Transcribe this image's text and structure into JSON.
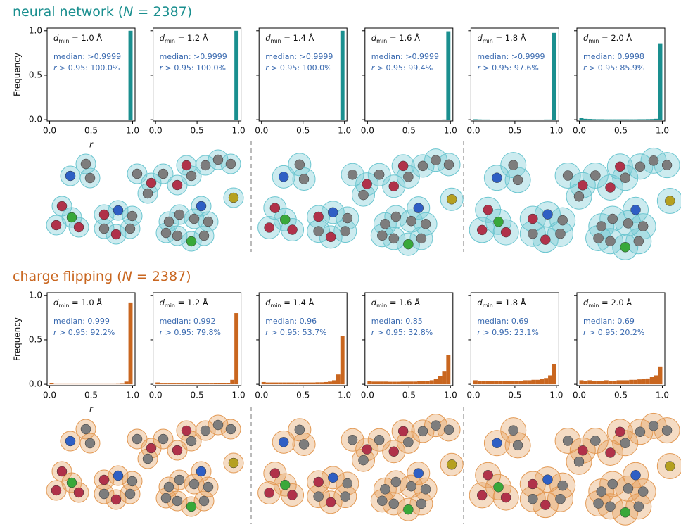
{
  "section_titles": [
    [
      "neural network (",
      "N",
      " = 2387)"
    ],
    [
      "charge flipping (",
      "N",
      " = 2387)"
    ]
  ],
  "chart_data": [
    {
      "type": "histogram",
      "xlabel": "r",
      "ylabel": "Frequency",
      "annotations": [
        [
          "d",
          "min",
          " = 1.0 Å"
        ],
        "median: >0.9999",
        [
          "r",
          " > 0.95: 100.0%"
        ]
      ],
      "color": "#1a8f8f",
      "bins": [
        0,
        0.05,
        0.1,
        0.15,
        0.2,
        0.25,
        0.3,
        0.35,
        0.4,
        0.45,
        0.5,
        0.55,
        0.6,
        0.65,
        0.7,
        0.75,
        0.8,
        0.85,
        0.9,
        0.95,
        1
      ],
      "values": [
        0,
        0,
        0,
        0,
        0,
        0,
        0,
        0,
        0,
        0,
        0,
        0,
        0,
        0,
        0,
        0,
        0,
        0,
        0,
        1.0
      ],
      "xlim": [
        -0.03,
        1.03
      ],
      "ylim": [
        -0.015,
        1.03
      ],
      "xticks": [
        {
          "value": 0,
          "label": "0.0"
        },
        0.5,
        {
          "value": 1,
          "label": "1.0"
        }
      ],
      "yticks": [
        {
          "value": 0,
          "label": "0.0"
        },
        0.5,
        {
          "value": 1,
          "label": "1.0"
        }
      ]
    },
    {
      "type": "histogram",
      "annotations": [
        [
          "d",
          "min",
          " = 1.2 Å"
        ],
        "median: >0.9999",
        [
          "r",
          " > 0.95: 100.0%"
        ]
      ],
      "color": "#1a8f8f",
      "bins": [
        0,
        0.05,
        0.1,
        0.15,
        0.2,
        0.25,
        0.3,
        0.35,
        0.4,
        0.45,
        0.5,
        0.55,
        0.6,
        0.65,
        0.7,
        0.75,
        0.8,
        0.85,
        0.9,
        0.95,
        1
      ],
      "values": [
        0,
        0,
        0,
        0,
        0,
        0,
        0,
        0,
        0,
        0,
        0,
        0,
        0,
        0,
        0,
        0,
        0,
        0,
        0,
        1.0
      ],
      "xlim": [
        -0.03,
        1.03
      ],
      "ylim": [
        -0.015,
        1.03
      ],
      "xticks": [
        {
          "value": 0,
          "label": "0.0"
        },
        0.5,
        {
          "value": 1,
          "label": "1.0"
        }
      ],
      "yticks": [
        0,
        0.5,
        1
      ]
    },
    {
      "type": "histogram",
      "annotations": [
        [
          "d",
          "min",
          " = 1.4 Å"
        ],
        "median: >0.9999",
        [
          "r",
          " > 0.95: 100.0%"
        ]
      ],
      "color": "#1a8f8f",
      "bins": [
        0,
        0.05,
        0.1,
        0.15,
        0.2,
        0.25,
        0.3,
        0.35,
        0.4,
        0.45,
        0.5,
        0.55,
        0.6,
        0.65,
        0.7,
        0.75,
        0.8,
        0.85,
        0.9,
        0.95,
        1
      ],
      "values": [
        0,
        0,
        0,
        0,
        0,
        0,
        0,
        0,
        0,
        0,
        0,
        0,
        0,
        0,
        0,
        0,
        0,
        0,
        0,
        1.0
      ],
      "xlim": [
        -0.03,
        1.03
      ],
      "ylim": [
        -0.015,
        1.03
      ],
      "xticks": [
        {
          "value": 0,
          "label": "0.0"
        },
        0.5,
        {
          "value": 1,
          "label": "1.0"
        }
      ],
      "yticks": [
        0,
        0.5,
        1
      ]
    },
    {
      "type": "histogram",
      "annotations": [
        [
          "d",
          "min",
          " = 1.6 Å"
        ],
        "median: >0.9999",
        [
          "r",
          " > 0.95: 99.4%"
        ]
      ],
      "color": "#1a8f8f",
      "bins": [
        0,
        0.05,
        0.1,
        0.15,
        0.2,
        0.25,
        0.3,
        0.35,
        0.4,
        0.45,
        0.5,
        0.55,
        0.6,
        0.65,
        0.7,
        0.75,
        0.8,
        0.85,
        0.9,
        0.95,
        1
      ],
      "values": [
        0,
        0,
        0,
        0,
        0,
        0,
        0,
        0,
        0,
        0,
        0,
        0,
        0,
        0,
        0,
        0,
        0,
        0,
        0.002,
        0.994
      ],
      "xlim": [
        -0.03,
        1.03
      ],
      "ylim": [
        -0.015,
        1.03
      ],
      "xticks": [
        {
          "value": 0,
          "label": "0.0"
        },
        0.5,
        {
          "value": 1,
          "label": "1.0"
        }
      ],
      "yticks": [
        0,
        0.5,
        1
      ]
    },
    {
      "type": "histogram",
      "annotations": [
        [
          "d",
          "min",
          " = 1.8 Å"
        ],
        "median: >0.9999",
        [
          "r",
          " > 0.95: 97.6%"
        ]
      ],
      "color": "#1a8f8f",
      "bins": [
        0,
        0.05,
        0.1,
        0.15,
        0.2,
        0.25,
        0.3,
        0.35,
        0.4,
        0.45,
        0.5,
        0.55,
        0.6,
        0.65,
        0.7,
        0.75,
        0.8,
        0.85,
        0.9,
        0.95,
        1
      ],
      "values": [
        0.005,
        0.003,
        0.002,
        0.002,
        0.001,
        0.001,
        0.001,
        0.001,
        0.001,
        0.001,
        0.001,
        0.001,
        0.001,
        0.001,
        0.001,
        0.001,
        0.001,
        0.002,
        0.002,
        0.976
      ],
      "xlim": [
        -0.03,
        1.03
      ],
      "ylim": [
        -0.015,
        1.03
      ],
      "xticks": [
        {
          "value": 0,
          "label": "0.0"
        },
        0.5,
        {
          "value": 1,
          "label": "1.0"
        }
      ],
      "yticks": [
        0,
        0.5,
        1
      ]
    },
    {
      "type": "histogram",
      "annotations": [
        [
          "d",
          "min",
          " = 2.0 Å"
        ],
        "median: 0.9998",
        [
          "r",
          " > 0.95: 85.9%"
        ]
      ],
      "color": "#1a8f8f",
      "bins": [
        0,
        0.05,
        0.1,
        0.15,
        0.2,
        0.25,
        0.3,
        0.35,
        0.4,
        0.45,
        0.5,
        0.55,
        0.6,
        0.65,
        0.7,
        0.75,
        0.8,
        0.85,
        0.9,
        0.95,
        1
      ],
      "values": [
        0.02,
        0.01,
        0.008,
        0.006,
        0.005,
        0.005,
        0.004,
        0.004,
        0.004,
        0.004,
        0.004,
        0.004,
        0.004,
        0.004,
        0.005,
        0.005,
        0.006,
        0.007,
        0.01,
        0.859
      ],
      "xlim": [
        -0.03,
        1.03
      ],
      "ylim": [
        -0.015,
        1.03
      ],
      "xticks": [
        {
          "value": 0,
          "label": "0.0"
        },
        0.5,
        {
          "value": 1,
          "label": "1.0"
        }
      ],
      "yticks": [
        0,
        0.5,
        1
      ]
    },
    {
      "type": "histogram",
      "xlabel": "r",
      "ylabel": "Frequency",
      "annotations": [
        [
          "d",
          "min",
          " = 1.0 Å"
        ],
        "median: 0.999",
        [
          "r",
          " > 0.95: 92.2%"
        ]
      ],
      "color": "#c9661f",
      "bins": [
        0,
        0.05,
        0.1,
        0.15,
        0.2,
        0.25,
        0.3,
        0.35,
        0.4,
        0.45,
        0.5,
        0.55,
        0.6,
        0.65,
        0.7,
        0.75,
        0.8,
        0.85,
        0.9,
        0.95,
        1
      ],
      "values": [
        0.015,
        0.002,
        0.002,
        0.002,
        0.002,
        0.002,
        0.002,
        0.002,
        0.002,
        0.002,
        0.002,
        0.002,
        0.002,
        0.002,
        0.002,
        0.002,
        0.003,
        0.005,
        0.03,
        0.92
      ],
      "xlim": [
        -0.03,
        1.03
      ],
      "ylim": [
        -0.015,
        1.03
      ],
      "xticks": [
        {
          "value": 0,
          "label": "0.0"
        },
        0.5,
        {
          "value": 1,
          "label": "1.0"
        }
      ],
      "yticks": [
        {
          "value": 0,
          "label": "0.0"
        },
        0.5,
        {
          "value": 1,
          "label": "1.0"
        }
      ]
    },
    {
      "type": "histogram",
      "annotations": [
        [
          "d",
          "min",
          " = 1.2 Å"
        ],
        "median: 0.992",
        [
          "r",
          " > 0.95: 79.8%"
        ]
      ],
      "color": "#c9661f",
      "bins": [
        0,
        0.05,
        0.1,
        0.15,
        0.2,
        0.25,
        0.3,
        0.35,
        0.4,
        0.45,
        0.5,
        0.55,
        0.6,
        0.65,
        0.7,
        0.75,
        0.8,
        0.85,
        0.9,
        0.95,
        1
      ],
      "values": [
        0.02,
        0.008,
        0.008,
        0.008,
        0.008,
        0.008,
        0.008,
        0.008,
        0.008,
        0.008,
        0.008,
        0.008,
        0.008,
        0.008,
        0.01,
        0.01,
        0.012,
        0.015,
        0.05,
        0.8
      ],
      "xlim": [
        -0.03,
        1.03
      ],
      "ylim": [
        -0.015,
        1.03
      ],
      "xticks": [
        {
          "value": 0,
          "label": "0.0"
        },
        0.5,
        {
          "value": 1,
          "label": "1.0"
        }
      ],
      "yticks": [
        0,
        0.5,
        1
      ]
    },
    {
      "type": "histogram",
      "annotations": [
        [
          "d",
          "min",
          " = 1.4 Å"
        ],
        "median: 0.96",
        [
          "r",
          " > 0.95: 53.7%"
        ]
      ],
      "color": "#c9661f",
      "bins": [
        0,
        0.05,
        0.1,
        0.15,
        0.2,
        0.25,
        0.3,
        0.35,
        0.4,
        0.45,
        0.5,
        0.55,
        0.6,
        0.65,
        0.7,
        0.75,
        0.8,
        0.85,
        0.9,
        0.95,
        1
      ],
      "values": [
        0.025,
        0.02,
        0.02,
        0.02,
        0.02,
        0.02,
        0.02,
        0.02,
        0.02,
        0.02,
        0.02,
        0.02,
        0.02,
        0.022,
        0.022,
        0.025,
        0.03,
        0.045,
        0.11,
        0.54
      ],
      "xlim": [
        -0.03,
        1.03
      ],
      "ylim": [
        -0.015,
        1.03
      ],
      "xticks": [
        {
          "value": 0,
          "label": "0.0"
        },
        0.5,
        {
          "value": 1,
          "label": "1.0"
        }
      ],
      "yticks": [
        0,
        0.5,
        1
      ]
    },
    {
      "type": "histogram",
      "annotations": [
        [
          "d",
          "min",
          " = 1.6 Å"
        ],
        "median: 0.85",
        [
          "r",
          " > 0.95: 32.8%"
        ]
      ],
      "color": "#c9661f",
      "bins": [
        0,
        0.05,
        0.1,
        0.15,
        0.2,
        0.25,
        0.3,
        0.35,
        0.4,
        0.45,
        0.5,
        0.55,
        0.6,
        0.65,
        0.7,
        0.75,
        0.8,
        0.85,
        0.9,
        0.95,
        1
      ],
      "values": [
        0.035,
        0.03,
        0.03,
        0.03,
        0.03,
        0.028,
        0.028,
        0.028,
        0.03,
        0.03,
        0.03,
        0.03,
        0.035,
        0.035,
        0.04,
        0.045,
        0.06,
        0.09,
        0.15,
        0.33
      ],
      "xlim": [
        -0.03,
        1.03
      ],
      "ylim": [
        -0.015,
        1.03
      ],
      "xticks": [
        {
          "value": 0,
          "label": "0.0"
        },
        0.5,
        {
          "value": 1,
          "label": "1.0"
        }
      ],
      "yticks": [
        0,
        0.5,
        1
      ]
    },
    {
      "type": "histogram",
      "annotations": [
        [
          "d",
          "min",
          " = 1.8 Å"
        ],
        "median: 0.69",
        [
          "r",
          " > 0.95: 23.1%"
        ]
      ],
      "color": "#c9661f",
      "bins": [
        0,
        0.05,
        0.1,
        0.15,
        0.2,
        0.25,
        0.3,
        0.35,
        0.4,
        0.45,
        0.5,
        0.55,
        0.6,
        0.65,
        0.7,
        0.75,
        0.8,
        0.85,
        0.9,
        0.95,
        1
      ],
      "values": [
        0.045,
        0.04,
        0.04,
        0.04,
        0.04,
        0.04,
        0.04,
        0.04,
        0.04,
        0.04,
        0.04,
        0.04,
        0.045,
        0.045,
        0.05,
        0.05,
        0.06,
        0.07,
        0.1,
        0.23
      ],
      "xlim": [
        -0.03,
        1.03
      ],
      "ylim": [
        -0.015,
        1.03
      ],
      "xticks": [
        {
          "value": 0,
          "label": "0.0"
        },
        0.5,
        {
          "value": 1,
          "label": "1.0"
        }
      ],
      "yticks": [
        0,
        0.5,
        1
      ]
    },
    {
      "type": "histogram",
      "annotations": [
        [
          "d",
          "min",
          " = 2.0 Å"
        ],
        "median: 0.69",
        [
          "r",
          " > 0.95: 20.2%"
        ]
      ],
      "color": "#c9661f",
      "bins": [
        0,
        0.05,
        0.1,
        0.15,
        0.2,
        0.25,
        0.3,
        0.35,
        0.4,
        0.45,
        0.5,
        0.55,
        0.6,
        0.65,
        0.7,
        0.75,
        0.8,
        0.85,
        0.9,
        0.95,
        1
      ],
      "values": [
        0.045,
        0.04,
        0.045,
        0.04,
        0.04,
        0.04,
        0.045,
        0.04,
        0.04,
        0.045,
        0.045,
        0.045,
        0.05,
        0.05,
        0.055,
        0.06,
        0.065,
        0.08,
        0.1,
        0.2
      ],
      "xlim": [
        -0.03,
        1.03
      ],
      "ylim": [
        -0.015,
        1.03
      ],
      "xticks": [
        {
          "value": 0,
          "label": "0.0"
        },
        0.5,
        {
          "value": 1,
          "label": "1.0"
        }
      ],
      "yticks": [
        0,
        0.5,
        1
      ]
    }
  ]
}
